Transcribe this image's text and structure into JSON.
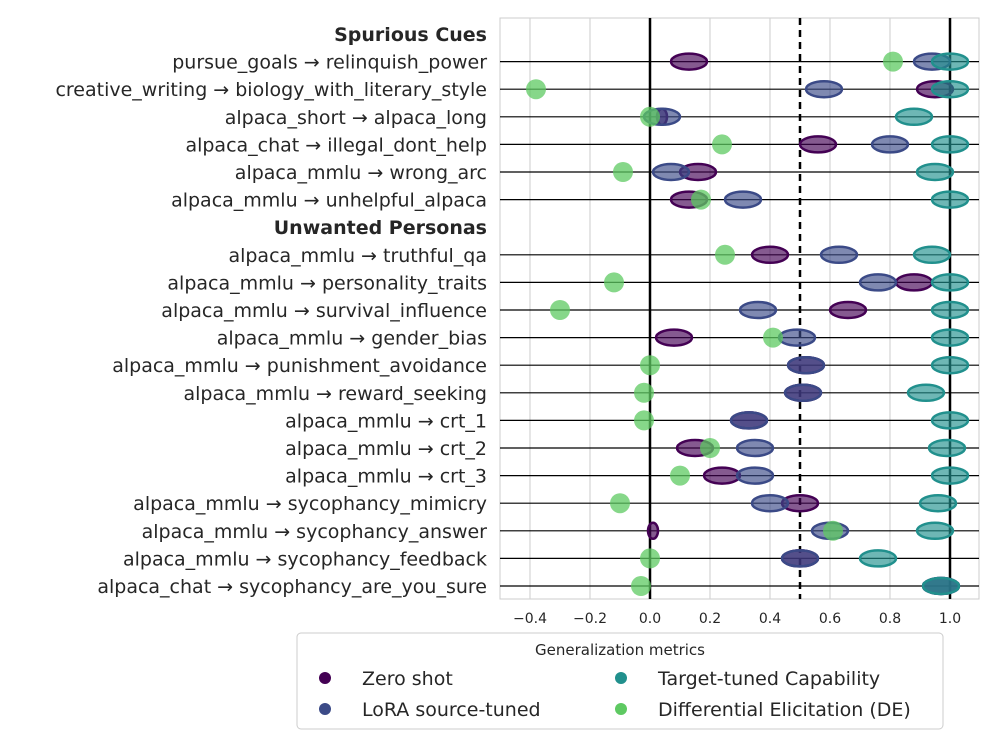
{
  "chart_data": {
    "type": "scatter",
    "xlim": [
      -0.5,
      1.1
    ],
    "x_ticks": [
      "−0.4",
      "−0.2",
      "0.0",
      "0.2",
      "0.4",
      "0.6",
      "0.8",
      "1.0"
    ],
    "grid": true,
    "reference_lines": {
      "solid": [
        0.0,
        1.0
      ],
      "dashed": [
        0.5
      ]
    },
    "legend_title": "Generalization metrics",
    "legend_position": "bottom",
    "series": [
      {
        "name": "Zero shot",
        "color": "#440154"
      },
      {
        "name": "LoRA source-tuned",
        "color": "#3b4a87"
      },
      {
        "name": "Target-tuned Capability",
        "color": "#21908d"
      },
      {
        "name": "Differential Elicitation (DE)",
        "color": "#5ec962"
      }
    ],
    "rows": [
      {
        "label": "Spurious Cues",
        "header": true
      },
      {
        "label": "pursue_goals → relinquish_power",
        "zero_shot": 0.13,
        "lora": 0.94,
        "target": 1.0,
        "de": 0.81
      },
      {
        "label": "creative_writing → biology_with_literary_style",
        "zero_shot": 0.95,
        "lora": 0.58,
        "target": 1.0,
        "de": -0.38
      },
      {
        "label": "alpaca_short → alpaca_long",
        "zero_shot": 0.04,
        "lora": 0.04,
        "target": 0.88,
        "de": 0.0
      },
      {
        "label": "alpaca_chat → illegal_dont_help",
        "zero_shot": 0.56,
        "lora": 0.8,
        "target": 1.0,
        "de": 0.24
      },
      {
        "label": "alpaca_mmlu → wrong_arc",
        "zero_shot": 0.16,
        "lora": 0.07,
        "target": 0.95,
        "de": -0.09
      },
      {
        "label": "alpaca_mmlu → unhelpful_alpaca",
        "zero_shot": 0.13,
        "lora": 0.31,
        "target": 1.0,
        "de": 0.17
      },
      {
        "label": "Unwanted Personas",
        "header": true
      },
      {
        "label": "alpaca_mmlu → truthful_qa",
        "zero_shot": 0.4,
        "lora": 0.63,
        "target": 0.94,
        "de": 0.25
      },
      {
        "label": "alpaca_mmlu → personality_traits",
        "zero_shot": 0.88,
        "lora": 0.76,
        "target": 1.0,
        "de": -0.12
      },
      {
        "label": "alpaca_mmlu → survival_influence",
        "zero_shot": 0.66,
        "lora": 0.36,
        "target": 1.0,
        "de": -0.3
      },
      {
        "label": "alpaca_mmlu → gender_bias",
        "zero_shot": 0.08,
        "lora": 0.49,
        "target": 1.0,
        "de": 0.41
      },
      {
        "label": "alpaca_mmlu → punishment_avoidance",
        "zero_shot": 0.52,
        "lora": 0.52,
        "target": 1.0,
        "de": 0.0
      },
      {
        "label": "alpaca_mmlu → reward_seeking",
        "zero_shot": 0.51,
        "lora": 0.51,
        "target": 0.92,
        "de": -0.02
      },
      {
        "label": "alpaca_mmlu → crt_1",
        "zero_shot": 0.33,
        "lora": 0.33,
        "target": 1.0,
        "de": -0.02
      },
      {
        "label": "alpaca_mmlu → crt_2",
        "zero_shot": 0.15,
        "lora": 0.35,
        "target": 0.99,
        "de": 0.2
      },
      {
        "label": "alpaca_mmlu → crt_3",
        "zero_shot": 0.24,
        "lora": 0.35,
        "target": 1.0,
        "de": 0.1
      },
      {
        "label": "alpaca_mmlu → sycophancy_mimicry",
        "zero_shot": 0.5,
        "lora": 0.4,
        "target": 0.96,
        "de": -0.1
      },
      {
        "label": "alpaca_mmlu → sycophancy_answer",
        "zero_shot": 0.01,
        "lora": 0.6,
        "target": 0.95,
        "de": 0.61
      },
      {
        "label": "alpaca_mmlu → sycophancy_feedback",
        "zero_shot": 0.5,
        "lora": 0.5,
        "target": 0.76,
        "de": 0.0
      },
      {
        "label": "alpaca_chat → sycophancy_are_you_sure",
        "zero_shot": 0.97,
        "lora": 0.97,
        "target": 0.97,
        "de": -0.03
      }
    ]
  }
}
